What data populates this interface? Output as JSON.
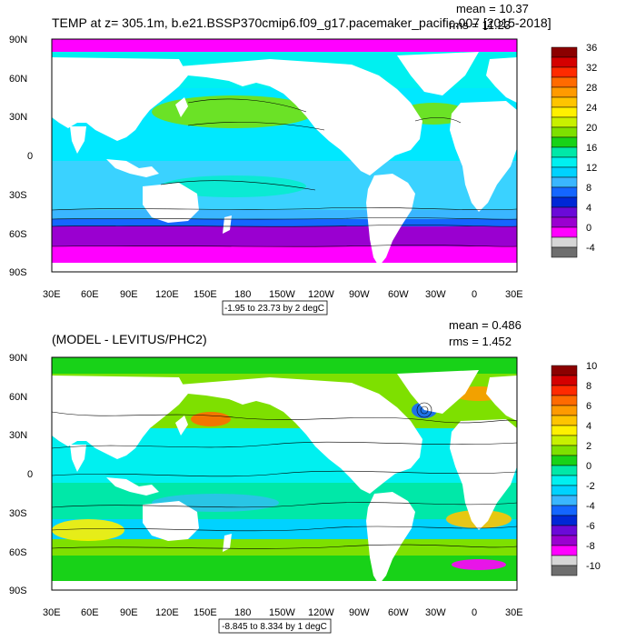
{
  "panels": [
    {
      "title": "TEMP at z= 305.1m, b.e21.BSSP370cmip6.f09_g17.pacemaker_pacific.007 [2015-2018]",
      "mean": "mean = 10.37",
      "rms": "rms = 11.23",
      "range": "-1.95 to 23.73 by 2 degC",
      "colorbar_labels": [
        "36",
        "32",
        "28",
        "24",
        "20",
        "16",
        "12",
        "8",
        "4",
        "0",
        "-4"
      ],
      "colorbar_colors": [
        "#8b0000",
        "#d40000",
        "#ff2a00",
        "#ff6a00",
        "#ff9a00",
        "#ffc400",
        "#fff000",
        "#c8f000",
        "#7ee000",
        "#18d218",
        "#00e8a8",
        "#00f0f0",
        "#00d2ff",
        "#3ab6ff",
        "#1466ff",
        "#0028d6",
        "#6a0ad8",
        "#9a00d0",
        "#ff00ff",
        "#d6d6d6",
        "#6e6e6e"
      ]
    },
    {
      "title": "(MODEL - LEVITUS/PHC2)",
      "mean": "mean = 0.486",
      "rms": "rms = 1.452",
      "range": "-8.845 to 8.334 by 1 degC",
      "colorbar_labels": [
        "10",
        "8",
        "6",
        "4",
        "2",
        "0",
        "-2",
        "-4",
        "-6",
        "-8",
        "-10"
      ],
      "colorbar_colors": [
        "#8b0000",
        "#d40000",
        "#ff2a00",
        "#ff6a00",
        "#ff9a00",
        "#ffc400",
        "#fff000",
        "#c8f000",
        "#7ee000",
        "#18d218",
        "#00e8a8",
        "#00f0f0",
        "#00d2ff",
        "#3ab6ff",
        "#1466ff",
        "#0028d6",
        "#6a0ad8",
        "#9a00d0",
        "#ff00ff",
        "#d6d6d6",
        "#6e6e6e"
      ]
    }
  ],
  "lat_labels": [
    "90N",
    "60N",
    "30N",
    "0",
    "30S",
    "60S",
    "90S"
  ],
  "lon_labels": [
    "30E",
    "60E",
    "90E",
    "120E",
    "150E",
    "180",
    "150W",
    "120W",
    "90W",
    "60W",
    "30W",
    "0",
    "30E"
  ]
}
